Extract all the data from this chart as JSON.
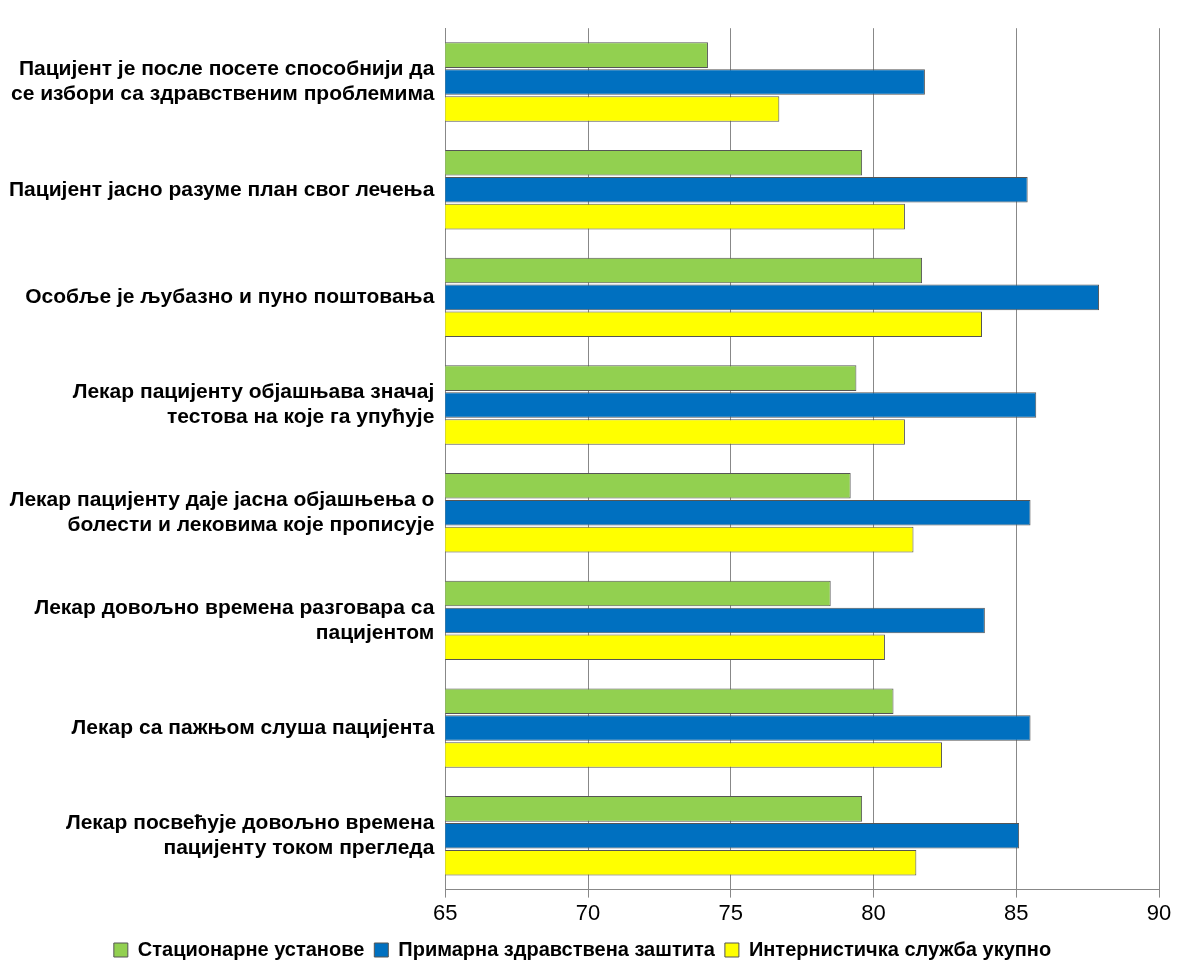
{
  "chart_data": {
    "type": "bar",
    "orientation": "horizontal",
    "categories": [
      "Пацијент је после посете способнији да се избори са здравственим проблемима",
      "Пацијент јасно разуме план свог лечења",
      "Особље је љубазно и пуно поштовања",
      "Лекар пацијенту објашњава значај тестова на које га упућује",
      "Лекар пацијенту даје јасна објашњења о болести и лековима које прописује",
      "Лекар довољно времена разговара са пацијентом",
      "Лекар са пажњом слуша пацијента",
      "Лекар посвећује довољно времена пацијенту током прегледа"
    ],
    "series": [
      {
        "name": "Стационарне установе",
        "color": "#92d050",
        "values": [
          74.2,
          79.6,
          81.7,
          79.4,
          79.2,
          78.5,
          80.7,
          79.6
        ]
      },
      {
        "name": "Примарна здравствена заштита",
        "color": "#0070c0",
        "values": [
          81.8,
          85.4,
          87.9,
          85.7,
          85.5,
          83.9,
          85.5,
          85.1
        ]
      },
      {
        "name": "Интернистичка служба укупно",
        "color": "#ffff00",
        "values": [
          76.7,
          81.1,
          83.8,
          81.1,
          81.4,
          80.4,
          82.4,
          81.5
        ]
      }
    ],
    "xlim": [
      65,
      90
    ],
    "xticks": [
      65,
      70,
      75,
      80,
      85,
      90
    ],
    "grid": "x",
    "legend": "bottom"
  }
}
